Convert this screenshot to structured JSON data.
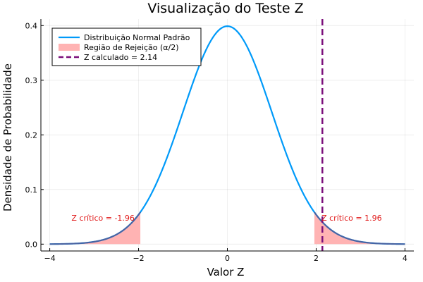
{
  "chart_data": {
    "type": "line",
    "title": "Visualização do Teste Z",
    "xlabel": "Valor Z",
    "ylabel": "Densidade de Probabilidade",
    "xlim": [
      -4,
      4
    ],
    "ylim": [
      0,
      0.4
    ],
    "x_ticks": [
      -4,
      -2,
      0,
      2,
      4
    ],
    "x_tick_labels": [
      "−4",
      "−2",
      "0",
      "2",
      "4"
    ],
    "y_ticks": [
      0.0,
      0.1,
      0.2,
      0.3,
      0.4
    ],
    "y_tick_labels": [
      "0.0",
      "0.1",
      "0.2",
      "0.3",
      "0.4"
    ],
    "grid": true,
    "legend_position": "top-left",
    "series": [
      {
        "name": "Distribuição Normal Padrão",
        "kind": "line",
        "function": "standard-normal-pdf",
        "color": "#009af9"
      },
      {
        "name": "Região de Rejeição (α/2)",
        "kind": "area",
        "ranges": [
          [
            -4,
            -1.96
          ],
          [
            1.96,
            4
          ]
        ],
        "color": "#ffb3b3"
      },
      {
        "name": "Z calculado = 2.14",
        "kind": "vline",
        "x": 2.14,
        "color": "#7b0f7b"
      }
    ],
    "annotations": [
      {
        "text": "Z crítico = -1.96",
        "x": -2.8,
        "y": 0.048,
        "color": "#e11b1b"
      },
      {
        "text": "Z crítico = 1.96",
        "x": 2.8,
        "y": 0.048,
        "color": "#e11b1b"
      }
    ]
  }
}
